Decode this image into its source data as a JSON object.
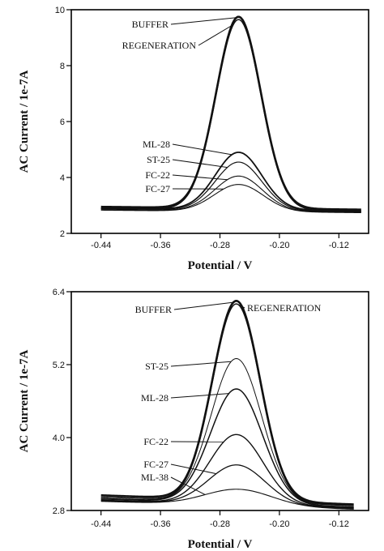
{
  "chart_data": [
    {
      "type": "line",
      "xlabel": "Potential / V",
      "ylabel": "AC Current / 1e-7A",
      "xlim": [
        -0.48,
        -0.08
      ],
      "ylim": [
        2,
        10
      ],
      "xticks": [
        -0.44,
        -0.36,
        -0.28,
        -0.2,
        -0.12
      ],
      "xtick_labels": [
        "-0.44",
        "-0.36",
        "-0.28",
        "-0.20",
        "-0.12"
      ],
      "yticks": [
        2,
        4,
        6,
        8,
        10
      ],
      "ytick_labels": [
        "2",
        "4",
        "6",
        "8",
        "10"
      ],
      "peak_x": -0.255,
      "x_range": [
        -0.44,
        -0.09
      ],
      "series": [
        {
          "name": "BUFFER",
          "peak": 9.75,
          "width": 0.03,
          "base_left": 2.95,
          "base_right": 2.85,
          "stroke": 2.6
        },
        {
          "name": "REGENERATION",
          "peak": 9.65,
          "width": 0.03,
          "base_left": 2.9,
          "base_right": 2.8,
          "stroke": 1.4
        },
        {
          "name": "ML-28",
          "peak": 4.9,
          "width": 0.031,
          "base_left": 2.9,
          "base_right": 2.8,
          "stroke": 1.8
        },
        {
          "name": "ST-25",
          "peak": 4.55,
          "width": 0.031,
          "base_left": 2.88,
          "base_right": 2.78,
          "stroke": 1.2
        },
        {
          "name": "FC-22",
          "peak": 4.05,
          "width": 0.032,
          "base_left": 2.85,
          "base_right": 2.76,
          "stroke": 1.1
        },
        {
          "name": "FC-27",
          "peak": 3.75,
          "width": 0.033,
          "base_left": 2.83,
          "base_right": 2.74,
          "stroke": 1.1
        }
      ],
      "callouts": [
        {
          "text": "BUFFER",
          "series": "BUFFER",
          "at_x": -0.258
        },
        {
          "text": "REGENERATION",
          "series": "REGENERATION",
          "at_x": -0.262
        },
        {
          "text": "ML-28",
          "series": "ML-28",
          "at_x": -0.264
        },
        {
          "text": "ST-25",
          "series": "ST-25",
          "at_x": -0.27
        },
        {
          "text": "FC-22",
          "series": "FC-22",
          "at_x": -0.27
        },
        {
          "text": "FC-27",
          "series": "FC-27",
          "at_x": -0.275
        }
      ]
    },
    {
      "type": "line",
      "xlabel": "Potential / V",
      "ylabel": "AC Current / 1e-7A",
      "xlim": [
        -0.48,
        -0.08
      ],
      "ylim": [
        2.8,
        6.4
      ],
      "xticks": [
        -0.44,
        -0.36,
        -0.28,
        -0.2,
        -0.12
      ],
      "xtick_labels": [
        "-0.44",
        "-0.36",
        "-0.28",
        "-0.20",
        "-0.12"
      ],
      "yticks": [
        2.8,
        4.0,
        5.2,
        6.4
      ],
      "ytick_labels": [
        "2.8",
        "4.0",
        "5.2",
        "6.4"
      ],
      "peak_x": -0.258,
      "x_range": [
        -0.44,
        -0.1
      ],
      "series": [
        {
          "name": "BUFFER",
          "peak": 6.25,
          "width": 0.032,
          "base_left": 3.05,
          "base_right": 2.9,
          "stroke": 2.6
        },
        {
          "name": "REGENERATION",
          "peak": 6.2,
          "width": 0.032,
          "base_left": 3.02,
          "base_right": 2.88,
          "stroke": 1.4
        },
        {
          "name": "ST-25",
          "peak": 5.3,
          "width": 0.034,
          "base_left": 3.0,
          "base_right": 2.86,
          "stroke": 1.0
        },
        {
          "name": "ML-28",
          "peak": 4.8,
          "width": 0.035,
          "base_left": 2.99,
          "base_right": 2.85,
          "stroke": 1.5
        },
        {
          "name": "FC-22",
          "peak": 4.05,
          "width": 0.036,
          "base_left": 2.97,
          "base_right": 2.84,
          "stroke": 1.4
        },
        {
          "name": "FC-27",
          "peak": 3.55,
          "width": 0.038,
          "base_left": 2.96,
          "base_right": 2.83,
          "stroke": 1.3
        },
        {
          "name": "ML-38",
          "peak": 3.15,
          "width": 0.045,
          "base_left": 2.95,
          "base_right": 2.82,
          "stroke": 1.1
        }
      ],
      "callouts": [
        {
          "text": "BUFFER",
          "series": "BUFFER",
          "at_x": -0.262
        },
        {
          "text": "REGENERATION",
          "series": "REGENERATION",
          "at_x": -0.255
        },
        {
          "text": "ST-25",
          "series": "ST-25",
          "at_x": -0.265
        },
        {
          "text": "ML-28",
          "series": "ML-28",
          "at_x": -0.268
        },
        {
          "text": "FC-22",
          "series": "FC-22",
          "at_x": -0.275
        },
        {
          "text": "FC-27",
          "series": "FC-27",
          "at_x": -0.285
        },
        {
          "text": "ML-38",
          "series": "ML-38",
          "at_x": -0.3
        }
      ]
    }
  ]
}
